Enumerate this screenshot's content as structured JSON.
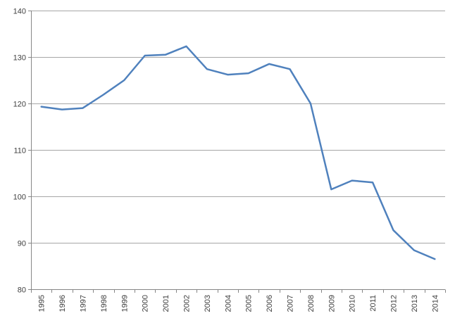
{
  "chart_data": {
    "type": "line",
    "categories": [
      "1995",
      "1996",
      "1997",
      "1998",
      "1999",
      "2000",
      "2001",
      "2002",
      "2003",
      "2004",
      "2005",
      "2006",
      "2007",
      "2008",
      "2009",
      "2010",
      "2011",
      "2012",
      "2013",
      "2014"
    ],
    "series": [
      {
        "values": [
          119.3,
          118.7,
          119.0,
          121.9,
          125.0,
          130.3,
          130.5,
          132.3,
          127.4,
          126.2,
          126.5,
          128.5,
          127.4,
          120.0,
          101.5,
          103.4,
          103.0,
          92.7,
          88.4,
          86.5
        ]
      }
    ],
    "title": "",
    "xlabel": "",
    "ylabel": "",
    "ylim": [
      80,
      140
    ],
    "yticks": [
      "80",
      "90",
      "100",
      "110",
      "120",
      "130",
      "140"
    ],
    "grid": true,
    "legend": "none",
    "colors": {
      "line": "#4f81bd",
      "grid": "#a6a6a6",
      "axis": "#868686",
      "text": "#404040"
    }
  }
}
